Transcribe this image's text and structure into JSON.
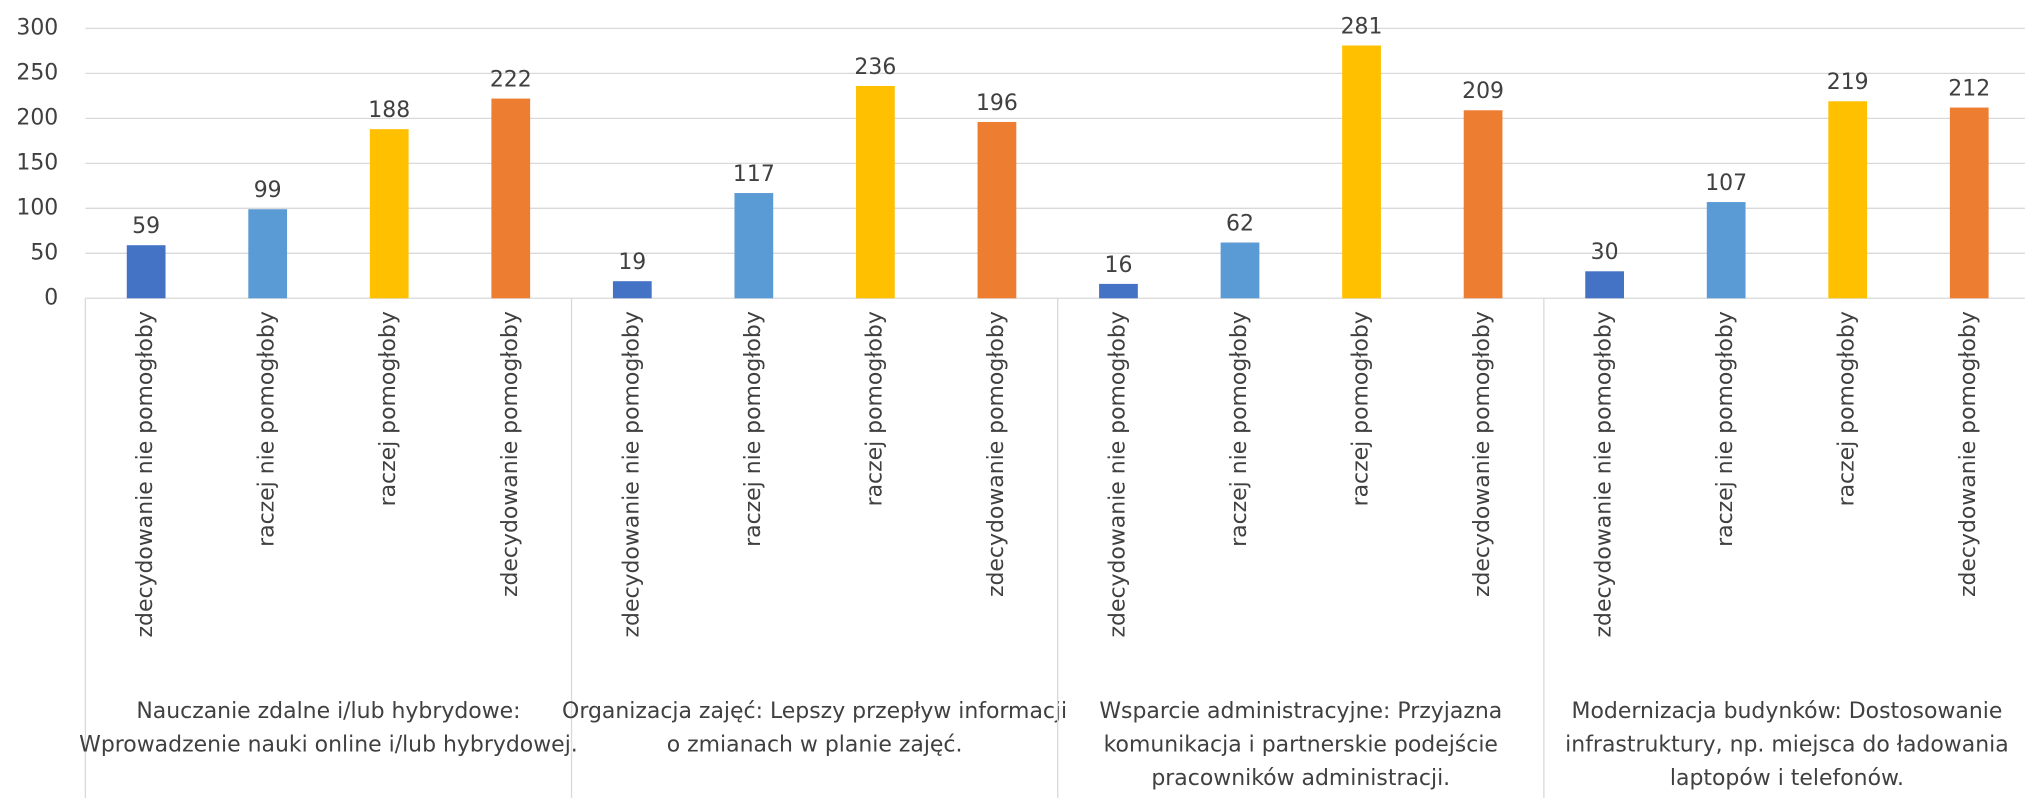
{
  "chart_data": {
    "type": "bar",
    "categories": [
      "Nauczanie zdalne i/lub hybrydowe: Wprowadzenie nauki online i/lub hybrydowej.",
      "Organizacja zajęć: Lepszy przepływ informacji o zmianach w planie zajęć.",
      "Wsparcie administracyjne: Przyjazna komunikacja i partnerskie podejście pracowników administracji.",
      "Modernizacja budynków: Dostosowanie infrastruktury, np. miejsca do ładowania laptopów i telefonów."
    ],
    "series": [
      {
        "name": "zdecydowanie nie pomogłoby",
        "color": "#4472c4",
        "values": [
          59,
          19,
          16,
          30
        ]
      },
      {
        "name": "raczej nie pomogłoby",
        "color": "#5b9bd5",
        "values": [
          99,
          117,
          62,
          107
        ]
      },
      {
        "name": "raczej pomogłoby",
        "color": "#ffc000",
        "values": [
          188,
          236,
          281,
          219
        ]
      },
      {
        "name": "zdecydowanie pomogłoby",
        "color": "#ed7d31",
        "values": [
          222,
          196,
          209,
          212
        ]
      }
    ],
    "ylim": [
      0,
      300
    ],
    "yticks": [
      0,
      50,
      100,
      150,
      200,
      250,
      300
    ],
    "grid": true
  }
}
